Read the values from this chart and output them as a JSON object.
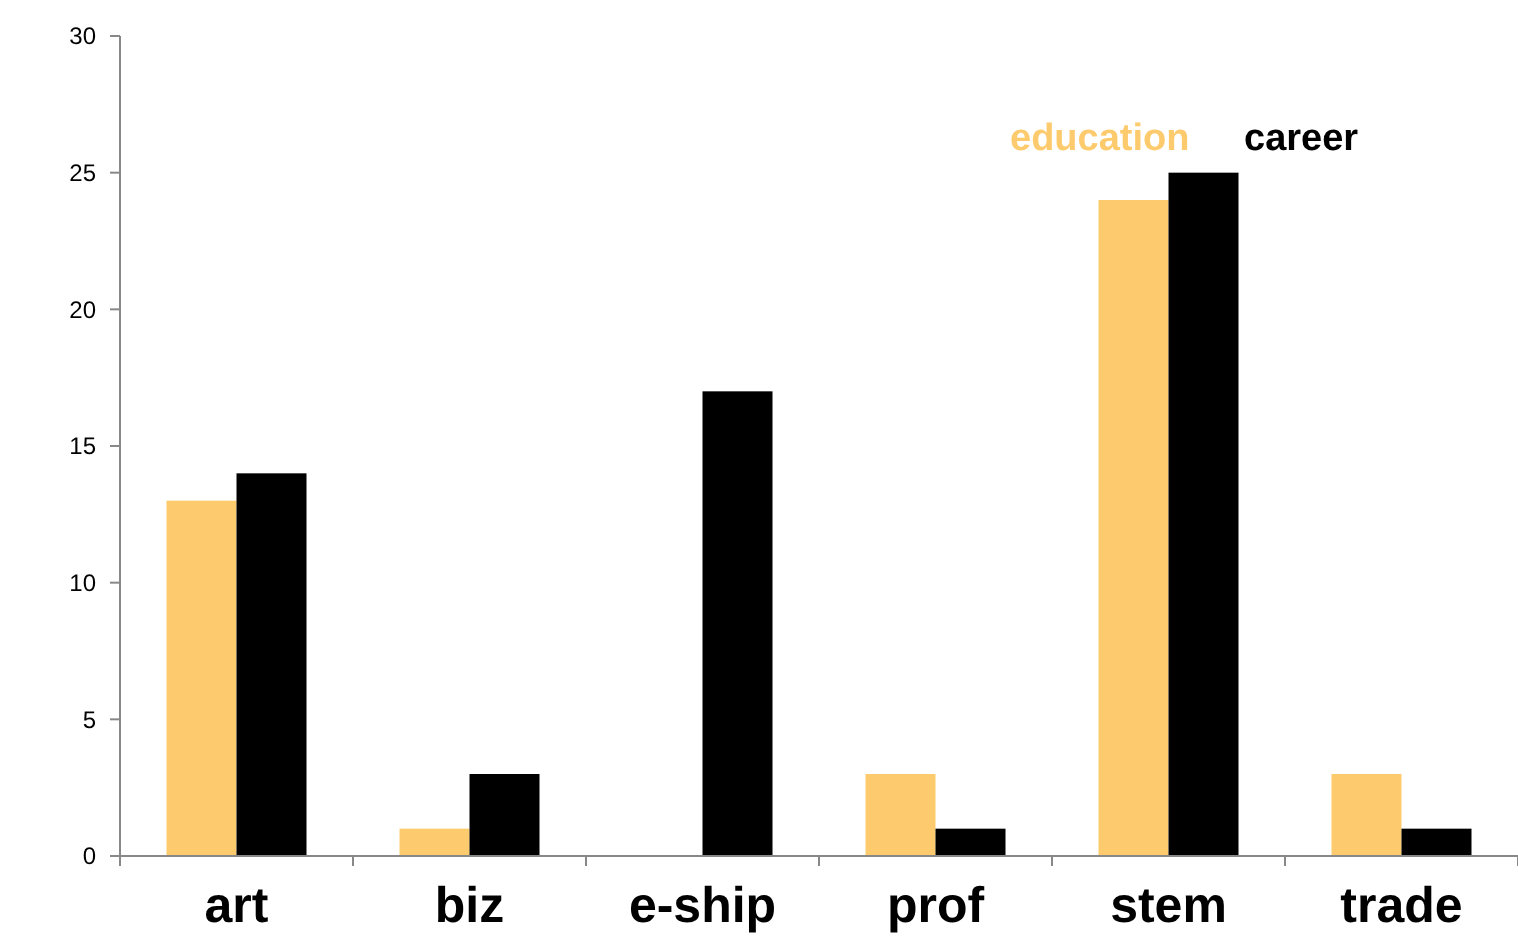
{
  "chart_data": {
    "type": "bar",
    "categories": [
      "art",
      "biz",
      "e-ship",
      "prof",
      "stem",
      "trade"
    ],
    "series": [
      {
        "name": "education",
        "color": "#fdcb6e",
        "values": [
          13,
          1,
          0,
          3,
          24,
          3
        ]
      },
      {
        "name": "career",
        "color": "#000000",
        "values": [
          14,
          3,
          17,
          1,
          25,
          1
        ]
      }
    ],
    "ylim": [
      0,
      30
    ],
    "yticks": [
      0,
      5,
      10,
      15,
      20,
      25,
      30
    ],
    "grid": false,
    "legend": "top right"
  }
}
